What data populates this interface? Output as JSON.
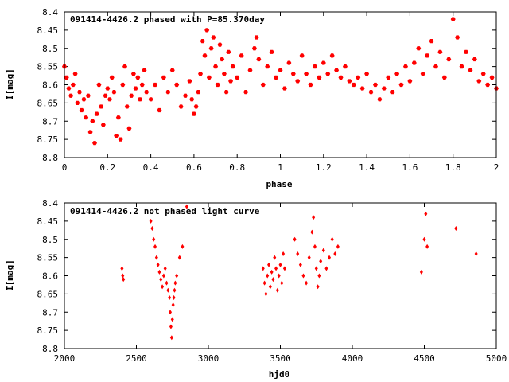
{
  "chart_data": [
    {
      "type": "scatter",
      "title": "091414-4426.2 phased with P=85.370day",
      "xlabel": "phase",
      "ylabel": "I[mag]",
      "xlim": [
        0,
        2
      ],
      "ylim": [
        8.8,
        8.4
      ],
      "y_inverted": true,
      "xticks": [
        0,
        0.2,
        0.4,
        0.6,
        0.8,
        1,
        1.2,
        1.4,
        1.6,
        1.8,
        2
      ],
      "yticks": [
        8.4,
        8.45,
        8.5,
        8.55,
        8.6,
        8.65,
        8.7,
        8.75,
        8.8
      ],
      "marker": "filled-hexagon",
      "color": "#ff0000",
      "grid": false,
      "points": [
        [
          0.0,
          8.55
        ],
        [
          0.01,
          8.58
        ],
        [
          0.02,
          8.61
        ],
        [
          0.03,
          8.63
        ],
        [
          0.04,
          8.6
        ],
        [
          0.05,
          8.57
        ],
        [
          0.06,
          8.65
        ],
        [
          0.07,
          8.62
        ],
        [
          0.08,
          8.67
        ],
        [
          0.09,
          8.64
        ],
        [
          0.1,
          8.69
        ],
        [
          0.11,
          8.63
        ],
        [
          0.12,
          8.73
        ],
        [
          0.13,
          8.7
        ],
        [
          0.14,
          8.76
        ],
        [
          0.15,
          8.68
        ],
        [
          0.16,
          8.6
        ],
        [
          0.17,
          8.66
        ],
        [
          0.18,
          8.71
        ],
        [
          0.19,
          8.63
        ],
        [
          0.2,
          8.61
        ],
        [
          0.21,
          8.64
        ],
        [
          0.22,
          8.58
        ],
        [
          0.23,
          8.62
        ],
        [
          0.24,
          8.74
        ],
        [
          0.25,
          8.69
        ],
        [
          0.26,
          8.75
        ],
        [
          0.27,
          8.6
        ],
        [
          0.28,
          8.55
        ],
        [
          0.29,
          8.66
        ],
        [
          0.3,
          8.72
        ],
        [
          0.31,
          8.63
        ],
        [
          0.32,
          8.57
        ],
        [
          0.33,
          8.61
        ],
        [
          0.34,
          8.58
        ],
        [
          0.35,
          8.64
        ],
        [
          0.36,
          8.6
        ],
        [
          0.37,
          8.56
        ],
        [
          0.38,
          8.62
        ],
        [
          0.4,
          8.64
        ],
        [
          0.42,
          8.6
        ],
        [
          0.44,
          8.67
        ],
        [
          0.46,
          8.58
        ],
        [
          0.48,
          8.62
        ],
        [
          0.5,
          8.56
        ],
        [
          0.52,
          8.6
        ],
        [
          0.54,
          8.66
        ],
        [
          0.56,
          8.63
        ],
        [
          0.58,
          8.59
        ],
        [
          0.59,
          8.64
        ],
        [
          0.6,
          8.68
        ],
        [
          0.61,
          8.66
        ],
        [
          0.62,
          8.62
        ],
        [
          0.63,
          8.57
        ],
        [
          0.64,
          8.48
        ],
        [
          0.65,
          8.52
        ],
        [
          0.66,
          8.45
        ],
        [
          0.67,
          8.58
        ],
        [
          0.68,
          8.5
        ],
        [
          0.69,
          8.47
        ],
        [
          0.7,
          8.55
        ],
        [
          0.71,
          8.6
        ],
        [
          0.72,
          8.49
        ],
        [
          0.73,
          8.53
        ],
        [
          0.74,
          8.57
        ],
        [
          0.75,
          8.62
        ],
        [
          0.76,
          8.51
        ],
        [
          0.77,
          8.59
        ],
        [
          0.78,
          8.55
        ],
        [
          0.8,
          8.58
        ],
        [
          0.82,
          8.52
        ],
        [
          0.84,
          8.62
        ],
        [
          0.86,
          8.56
        ],
        [
          0.88,
          8.5
        ],
        [
          0.89,
          8.47
        ],
        [
          0.9,
          8.53
        ],
        [
          0.92,
          8.6
        ],
        [
          0.94,
          8.55
        ],
        [
          0.96,
          8.51
        ],
        [
          0.98,
          8.58
        ],
        [
          1.0,
          8.56
        ],
        [
          1.02,
          8.61
        ],
        [
          1.04,
          8.54
        ],
        [
          1.06,
          8.57
        ],
        [
          1.08,
          8.59
        ],
        [
          1.1,
          8.52
        ],
        [
          1.12,
          8.57
        ],
        [
          1.14,
          8.6
        ],
        [
          1.16,
          8.55
        ],
        [
          1.18,
          8.58
        ],
        [
          1.2,
          8.54
        ],
        [
          1.22,
          8.57
        ],
        [
          1.24,
          8.52
        ],
        [
          1.26,
          8.56
        ],
        [
          1.28,
          8.58
        ],
        [
          1.3,
          8.55
        ],
        [
          1.32,
          8.59
        ],
        [
          1.34,
          8.6
        ],
        [
          1.36,
          8.58
        ],
        [
          1.38,
          8.61
        ],
        [
          1.4,
          8.57
        ],
        [
          1.42,
          8.62
        ],
        [
          1.44,
          8.6
        ],
        [
          1.46,
          8.64
        ],
        [
          1.48,
          8.61
        ],
        [
          1.5,
          8.58
        ],
        [
          1.52,
          8.62
        ],
        [
          1.54,
          8.57
        ],
        [
          1.56,
          8.6
        ],
        [
          1.58,
          8.55
        ],
        [
          1.6,
          8.59
        ],
        [
          1.62,
          8.54
        ],
        [
          1.64,
          8.5
        ],
        [
          1.66,
          8.57
        ],
        [
          1.68,
          8.52
        ],
        [
          1.7,
          8.48
        ],
        [
          1.72,
          8.55
        ],
        [
          1.74,
          8.51
        ],
        [
          1.76,
          8.58
        ],
        [
          1.78,
          8.53
        ],
        [
          1.8,
          8.42
        ],
        [
          1.82,
          8.47
        ],
        [
          1.84,
          8.55
        ],
        [
          1.86,
          8.51
        ],
        [
          1.88,
          8.56
        ],
        [
          1.9,
          8.53
        ],
        [
          1.92,
          8.59
        ],
        [
          1.94,
          8.57
        ],
        [
          1.96,
          8.6
        ],
        [
          1.98,
          8.58
        ],
        [
          2.0,
          8.61
        ]
      ]
    },
    {
      "type": "scatter",
      "title": "091414-4426.2 not phased light curve",
      "xlabel": "hjd0",
      "ylabel": "I[mag]",
      "xlim": [
        2000,
        5000
      ],
      "ylim": [
        8.8,
        8.4
      ],
      "y_inverted": true,
      "xticks": [
        2000,
        2500,
        3000,
        3500,
        4000,
        4500,
        5000
      ],
      "yticks": [
        8.4,
        8.45,
        8.5,
        8.55,
        8.6,
        8.65,
        8.7,
        8.75,
        8.8
      ],
      "marker": "filled-diamond",
      "color": "#ff0000",
      "grid": false,
      "points": [
        [
          2400,
          8.58
        ],
        [
          2405,
          8.6
        ],
        [
          2410,
          8.61
        ],
        [
          2600,
          8.45
        ],
        [
          2610,
          8.47
        ],
        [
          2620,
          8.5
        ],
        [
          2630,
          8.52
        ],
        [
          2640,
          8.55
        ],
        [
          2650,
          8.57
        ],
        [
          2660,
          8.59
        ],
        [
          2670,
          8.61
        ],
        [
          2680,
          8.63
        ],
        [
          2690,
          8.6
        ],
        [
          2700,
          8.58
        ],
        [
          2710,
          8.62
        ],
        [
          2720,
          8.64
        ],
        [
          2730,
          8.66
        ],
        [
          2735,
          8.7
        ],
        [
          2740,
          8.74
        ],
        [
          2745,
          8.77
        ],
        [
          2750,
          8.72
        ],
        [
          2755,
          8.68
        ],
        [
          2760,
          8.66
        ],
        [
          2765,
          8.64
        ],
        [
          2770,
          8.62
        ],
        [
          2780,
          8.6
        ],
        [
          2800,
          8.55
        ],
        [
          2820,
          8.52
        ],
        [
          2850,
          8.41
        ],
        [
          3380,
          8.58
        ],
        [
          3390,
          8.62
        ],
        [
          3400,
          8.65
        ],
        [
          3410,
          8.6
        ],
        [
          3420,
          8.57
        ],
        [
          3430,
          8.63
        ],
        [
          3440,
          8.59
        ],
        [
          3450,
          8.61
        ],
        [
          3460,
          8.55
        ],
        [
          3470,
          8.58
        ],
        [
          3480,
          8.64
        ],
        [
          3490,
          8.6
        ],
        [
          3500,
          8.57
        ],
        [
          3510,
          8.62
        ],
        [
          3520,
          8.54
        ],
        [
          3530,
          8.58
        ],
        [
          3600,
          8.5
        ],
        [
          3620,
          8.54
        ],
        [
          3640,
          8.57
        ],
        [
          3660,
          8.6
        ],
        [
          3680,
          8.62
        ],
        [
          3700,
          8.55
        ],
        [
          3720,
          8.48
        ],
        [
          3730,
          8.44
        ],
        [
          3740,
          8.52
        ],
        [
          3750,
          8.58
        ],
        [
          3760,
          8.63
        ],
        [
          3770,
          8.6
        ],
        [
          3780,
          8.56
        ],
        [
          3800,
          8.53
        ],
        [
          3820,
          8.58
        ],
        [
          3840,
          8.55
        ],
        [
          3860,
          8.5
        ],
        [
          3880,
          8.54
        ],
        [
          3900,
          8.52
        ],
        [
          4480,
          8.59
        ],
        [
          4500,
          8.5
        ],
        [
          4510,
          8.43
        ],
        [
          4520,
          8.52
        ],
        [
          4720,
          8.47
        ],
        [
          4860,
          8.54
        ]
      ]
    }
  ]
}
